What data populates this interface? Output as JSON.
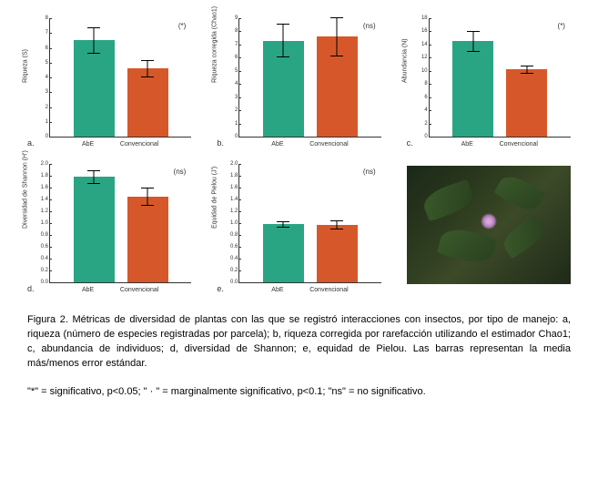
{
  "colors": {
    "abe": "#2aa583",
    "conv": "#d6582a",
    "axis": "#333333",
    "bg": "#ffffff"
  },
  "categories": [
    "AbE",
    "Convencional"
  ],
  "panels": [
    {
      "letter": "a.",
      "ylabel": "Riqueza (S)",
      "ylim": [
        0,
        8
      ],
      "ytick_step": 1,
      "sig": "(*)",
      "bars": [
        {
          "value": 6.5,
          "err_lo": 0.9,
          "err_hi": 0.9
        },
        {
          "value": 4.6,
          "err_lo": 0.6,
          "err_hi": 0.6
        }
      ]
    },
    {
      "letter": "b.",
      "ylabel": "Riqueza corregida (Chao1)",
      "ylim": [
        0,
        9
      ],
      "ytick_step": 1,
      "sig": "(ns)",
      "bars": [
        {
          "value": 7.3,
          "err_lo": 1.3,
          "err_hi": 1.3
        },
        {
          "value": 7.6,
          "err_lo": 1.5,
          "err_hi": 1.5
        }
      ]
    },
    {
      "letter": "c.",
      "ylabel": "Abundancia (N)",
      "ylim": [
        0,
        18
      ],
      "ytick_step": 2,
      "sig": "(*)",
      "bars": [
        {
          "value": 14.5,
          "err_lo": 1.6,
          "err_hi": 1.6
        },
        {
          "value": 10.2,
          "err_lo": 0.6,
          "err_hi": 0.6
        }
      ]
    },
    {
      "letter": "d.",
      "ylabel": "Diversidad de Shannon (H')",
      "ylim": [
        0,
        2.0
      ],
      "ytick_step": 0.2,
      "sig": "(ns)",
      "bars": [
        {
          "value": 1.78,
          "err_lo": 0.12,
          "err_hi": 0.12
        },
        {
          "value": 1.45,
          "err_lo": 0.15,
          "err_hi": 0.15
        }
      ]
    },
    {
      "letter": "e.",
      "ylabel": "Equidad de Pielou (J')",
      "ylim": [
        0,
        2.0
      ],
      "ytick_step": 0.2,
      "sig": "(ns)",
      "bars": [
        {
          "value": 0.98,
          "err_lo": 0.05,
          "err_hi": 0.05
        },
        {
          "value": 0.97,
          "err_lo": 0.08,
          "err_hi": 0.08
        }
      ]
    }
  ],
  "caption": "Figura 2. Métricas de diversidad de plantas con las que se registró interacciones con insectos, por tipo de manejo: a, riqueza (número de especies registradas por parcela); b, riqueza corregida por rarefacción utilizando el estimador Chao1; c, abundancia de individuos; d, diversidad de Shannon; e, equidad de Pielou.  Las barras representan la media más/menos error estándar.",
  "footnote": "\"*\" = significativo, p<0.05; \" · \" = marginalmente significativo, p<0.1; \"ns\" = no significativo.",
  "font": {
    "caption_size_pt": 11,
    "axis_label_size_pt": 7,
    "tick_size_pt": 6
  }
}
